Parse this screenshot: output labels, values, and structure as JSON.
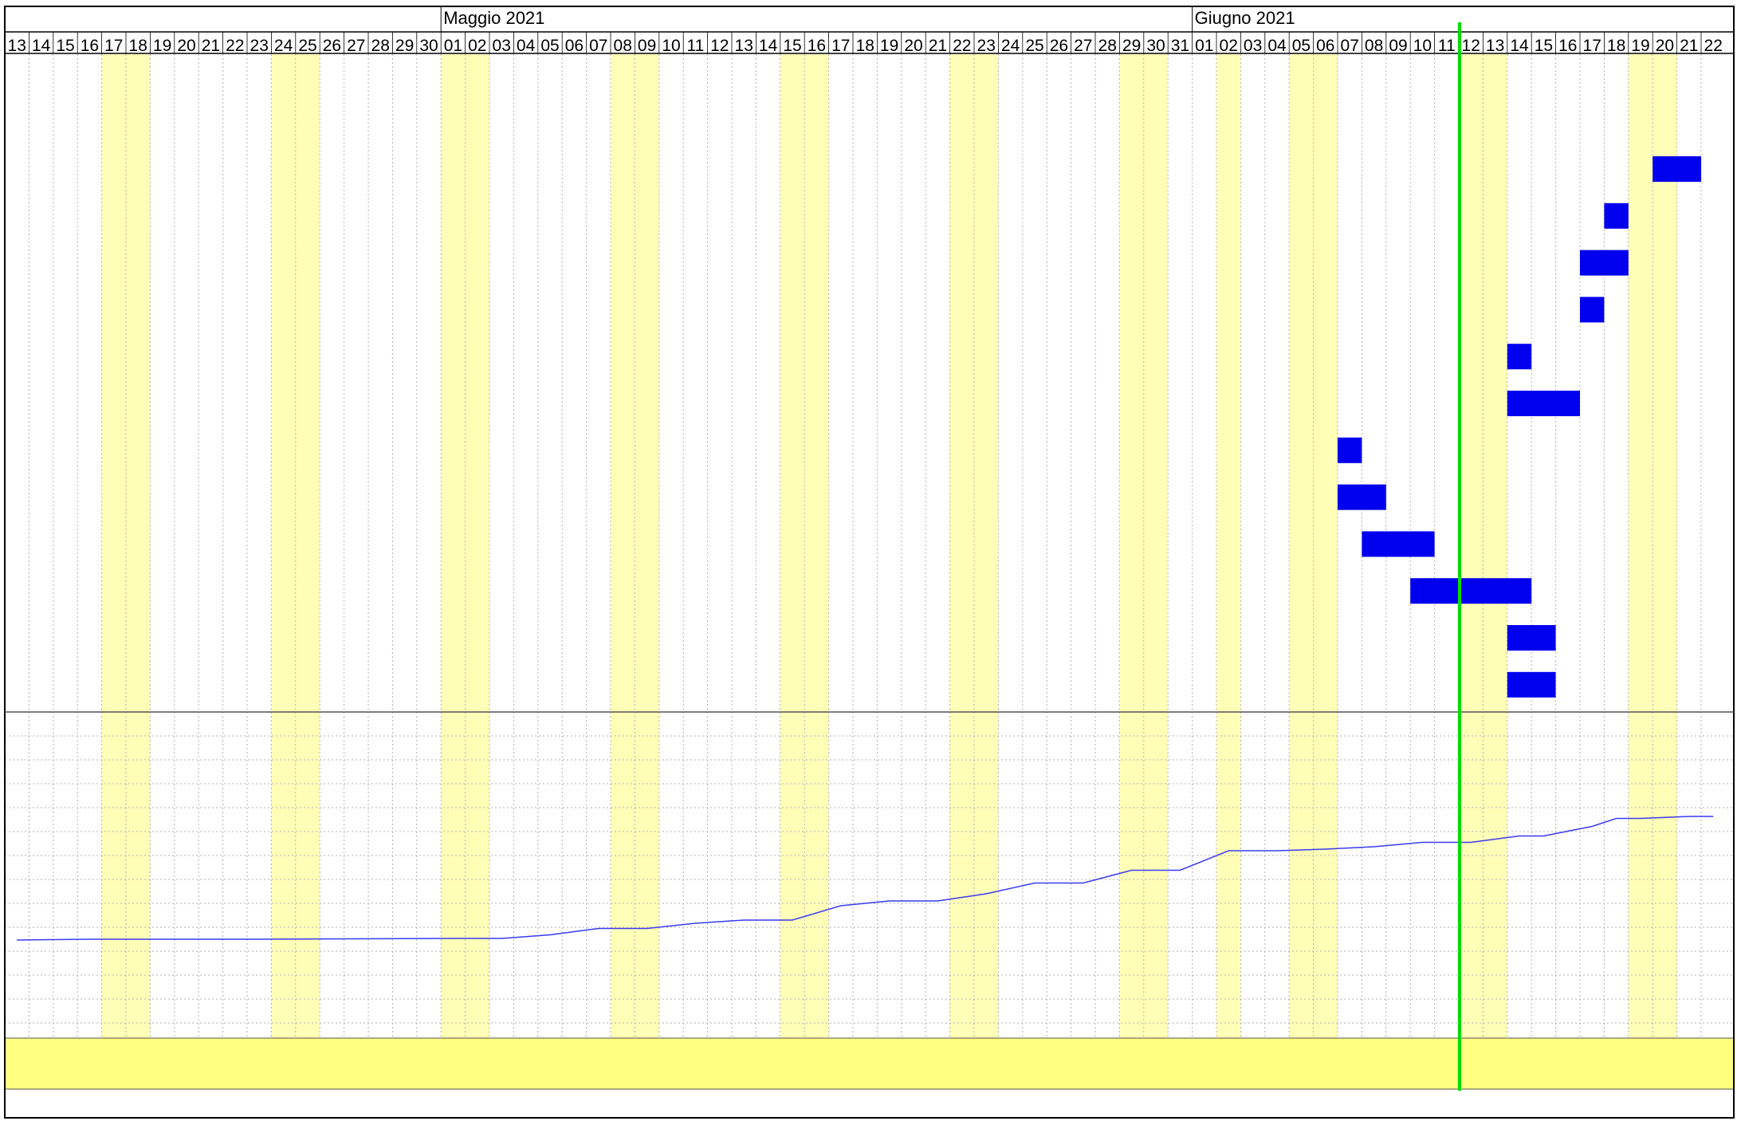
{
  "header": {
    "months": [
      {
        "label": "Maggio 2021",
        "start_day_index": 18
      },
      {
        "label": "Giugno 2021",
        "start_day_index": 49
      }
    ]
  },
  "chart_data": {
    "type": "gantt",
    "title": "",
    "days": [
      "13",
      "14",
      "15",
      "16",
      "17",
      "18",
      "19",
      "20",
      "21",
      "22",
      "23",
      "24",
      "25",
      "26",
      "27",
      "28",
      "29",
      "30",
      "01",
      "02",
      "03",
      "04",
      "05",
      "06",
      "07",
      "08",
      "09",
      "10",
      "11",
      "12",
      "13",
      "14",
      "15",
      "16",
      "17",
      "18",
      "19",
      "20",
      "21",
      "22",
      "23",
      "24",
      "25",
      "26",
      "27",
      "28",
      "29",
      "30",
      "31",
      "01",
      "02",
      "03",
      "04",
      "05",
      "06",
      "07",
      "08",
      "09",
      "10",
      "11",
      "12",
      "13",
      "14",
      "15",
      "16",
      "17",
      "18",
      "19",
      "20",
      "21",
      "22"
    ],
    "weekend_day_indices": [
      4,
      5,
      11,
      12,
      18,
      19,
      25,
      26,
      32,
      33,
      39,
      40,
      46,
      47,
      50,
      53,
      54,
      60,
      61,
      67,
      68
    ],
    "today_day_index": 60,
    "tasks": [
      {
        "start": 68,
        "days": 2
      },
      {
        "start": 66,
        "days": 1
      },
      {
        "start": 65,
        "days": 2
      },
      {
        "start": 65,
        "days": 1
      },
      {
        "start": 62,
        "days": 1
      },
      {
        "start": 62,
        "days": 3
      },
      {
        "start": 55,
        "days": 1
      },
      {
        "start": 55,
        "days": 2
      },
      {
        "start": 56,
        "days": 3
      },
      {
        "start": 58,
        "days": 5
      },
      {
        "start": 62,
        "days": 2
      },
      {
        "start": 62,
        "days": 2
      }
    ],
    "progress_curve": {
      "day_index": [
        0,
        3,
        10,
        18,
        20,
        22,
        24,
        26,
        28,
        30,
        32,
        34,
        36,
        38,
        40,
        42,
        44,
        46,
        48,
        50,
        52,
        54,
        56,
        58,
        60,
        62,
        63,
        65,
        66,
        67,
        69,
        70
      ],
      "value": [
        0,
        0.2,
        0.2,
        0.4,
        0.4,
        1.3,
        2.9,
        2.9,
        4.2,
        5.0,
        5.0,
        8.6,
        9.8,
        9.8,
        11.6,
        14.3,
        14.3,
        17.5,
        17.5,
        22.4,
        22.4,
        22.8,
        23.4,
        24.5,
        24.5,
        26.1,
        26.1,
        28.5,
        30.5,
        30.5,
        31.0,
        31.0
      ],
      "ylim": [
        0,
        100
      ],
      "color": "#3a3af0"
    },
    "colors": {
      "task_bar": "#0000ee",
      "weekend_band": "#ffffb8",
      "today_line": "#00dd00",
      "footer_band": "#ffff80",
      "grid": "#b0b0b0"
    }
  }
}
